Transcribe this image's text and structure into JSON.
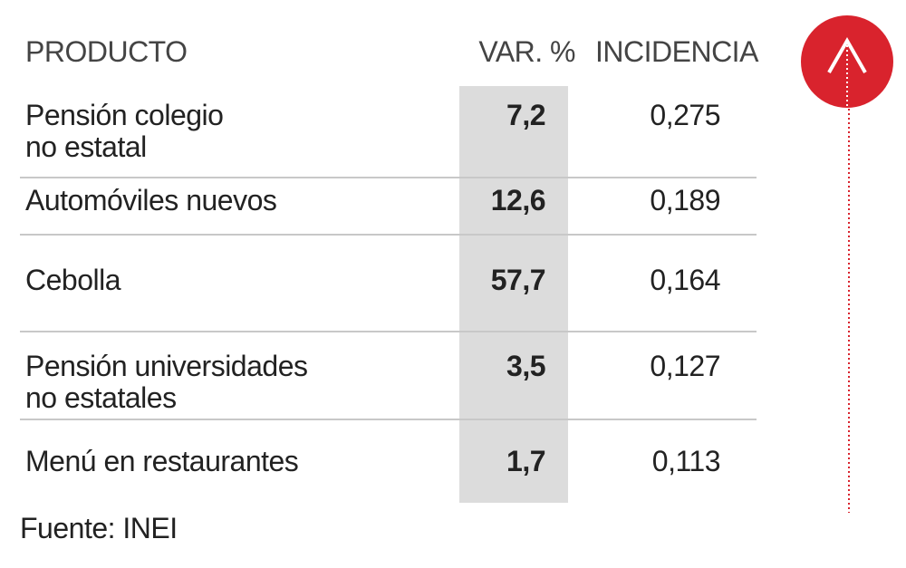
{
  "header": {
    "product": "PRODUCTO",
    "var": "VAR. %",
    "incidence": "INCIDENCIA"
  },
  "rows": [
    {
      "product": [
        "Pensión colegio",
        "no estatal"
      ],
      "var": "7,2",
      "incidence": "0,275"
    },
    {
      "product": [
        "Automóviles nuevos"
      ],
      "var": "12,6",
      "incidence": "0,189"
    },
    {
      "product": [
        "Cebolla"
      ],
      "var": "57,7",
      "incidence": "0,164"
    },
    {
      "product": [
        "Pensión universidades",
        "no estatales"
      ],
      "var": "3,5",
      "incidence": "0,127"
    },
    {
      "product": [
        "Menú en restaurantes"
      ],
      "var": "1,7",
      "incidence": "0,113"
    }
  ],
  "source": "Fuente: INEI"
}
